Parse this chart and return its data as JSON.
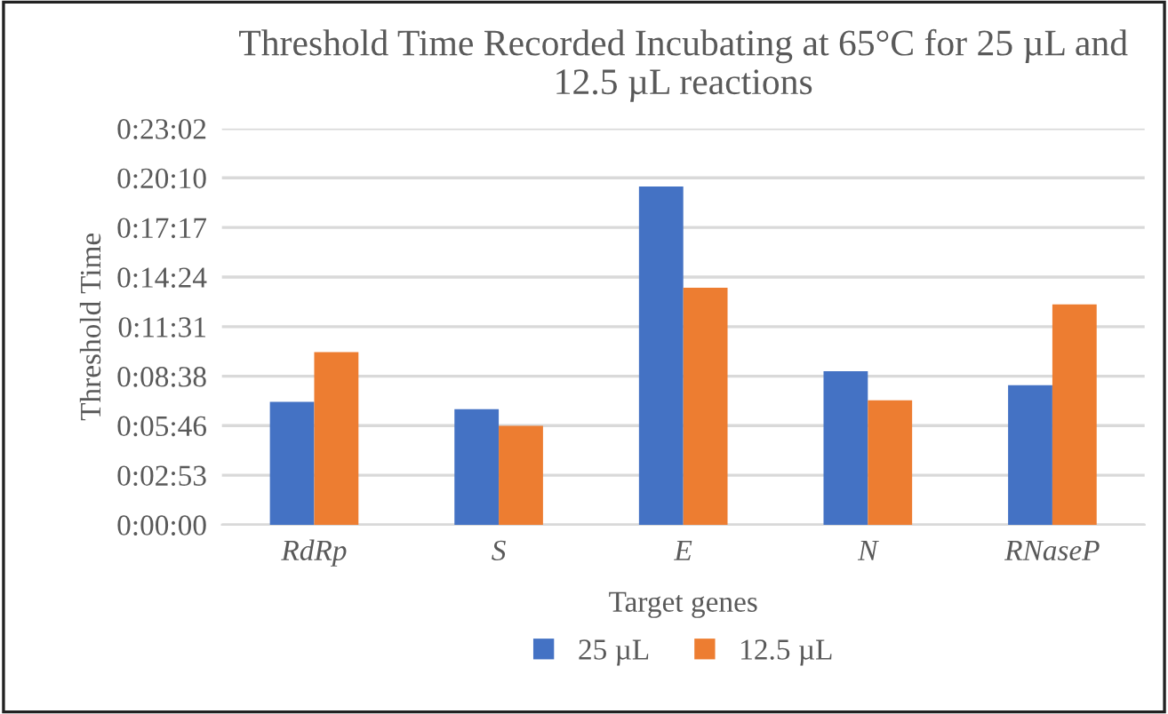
{
  "chart_data": {
    "type": "bar",
    "title": "Threshold Time Recorded Incubating at 65°C for 25 µL and\n12.5 µL reactions",
    "xlabel": "Target genes",
    "ylabel": "Threshold Time",
    "categories": [
      "RdRp",
      "S",
      "E",
      "N",
      "RNaseP"
    ],
    "series": [
      {
        "name": "25 µL",
        "color": "#4472c4",
        "values": [
          429,
          403,
          1180,
          536,
          487
        ]
      },
      {
        "name": "12.5 µL",
        "color": "#ed7d31",
        "values": [
          602,
          345,
          827,
          434,
          769
        ]
      }
    ],
    "ylim": [
      0,
      1382
    ],
    "yticks": [
      {
        "value": 0,
        "label": "0:00:00"
      },
      {
        "value": 173,
        "label": "0:02:53"
      },
      {
        "value": 346,
        "label": "0:05:46"
      },
      {
        "value": 518,
        "label": "0:08:38"
      },
      {
        "value": 691,
        "label": "0:11:31"
      },
      {
        "value": 864,
        "label": "0:14:24"
      },
      {
        "value": 1037,
        "label": "0:17:17"
      },
      {
        "value": 1210,
        "label": "0:20:10"
      },
      {
        "value": 1382,
        "label": "0:23:02"
      }
    ],
    "grid": "y",
    "legend": "bottom"
  }
}
